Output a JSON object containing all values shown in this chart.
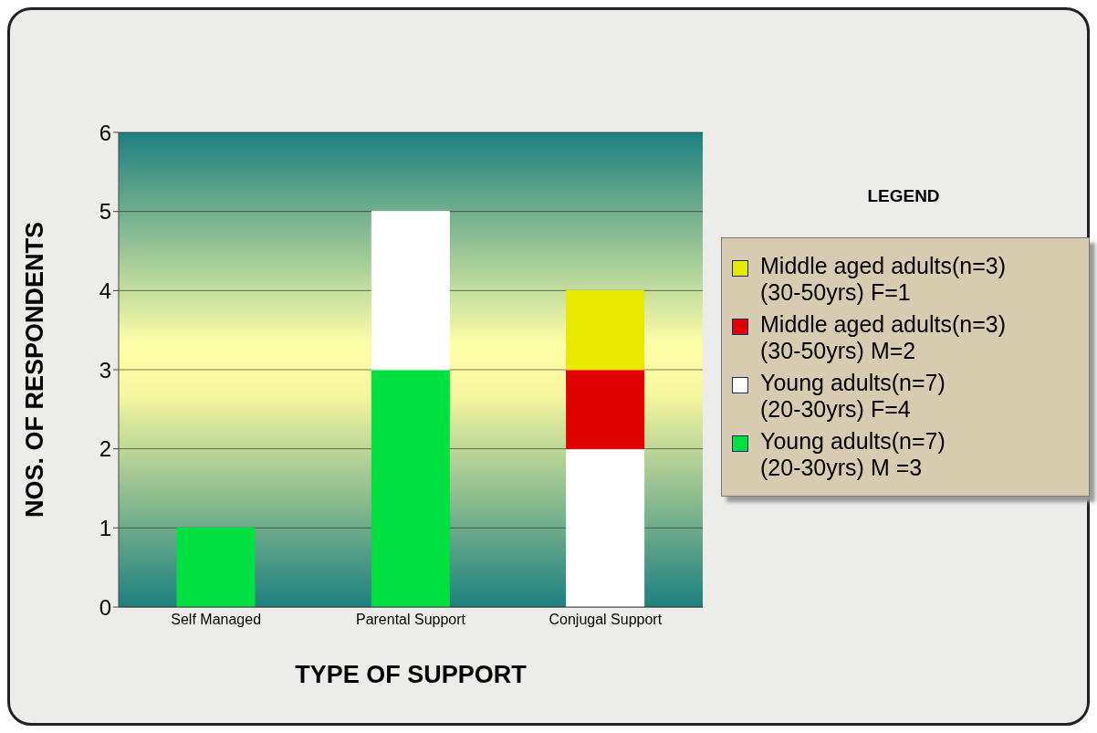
{
  "chart_data": {
    "type": "bar",
    "stacked": true,
    "xlabel": "TYPE OF SUPPORT",
    "ylabel": "NOS. OF RESPONDENTS",
    "legend_title": "LEGEND",
    "categories": [
      "Self Managed",
      "Parental Support",
      "Conjugal Support"
    ],
    "series": [
      {
        "name": "Young adults(n=7) (20-30yrs) M =3",
        "color": "#00e040",
        "values": [
          1,
          3,
          null
        ]
      },
      {
        "name": "Young adults(n=7) (20-30yrs) F=4",
        "color": "#ffffff",
        "values": [
          null,
          2,
          2
        ]
      },
      {
        "name": "Middle aged adults(n=3) (30-50yrs) M=2",
        "color": "#e00000",
        "values": [
          null,
          null,
          1
        ]
      },
      {
        "name": "Middle aged adults(n=3) (30-50yrs) F=1",
        "color": "#e8e800",
        "values": [
          null,
          null,
          1
        ]
      }
    ],
    "ylim": [
      0,
      6
    ],
    "yticks": [
      0,
      1,
      2,
      3,
      4,
      5,
      6
    ],
    "grid": "y",
    "legend": "right"
  }
}
